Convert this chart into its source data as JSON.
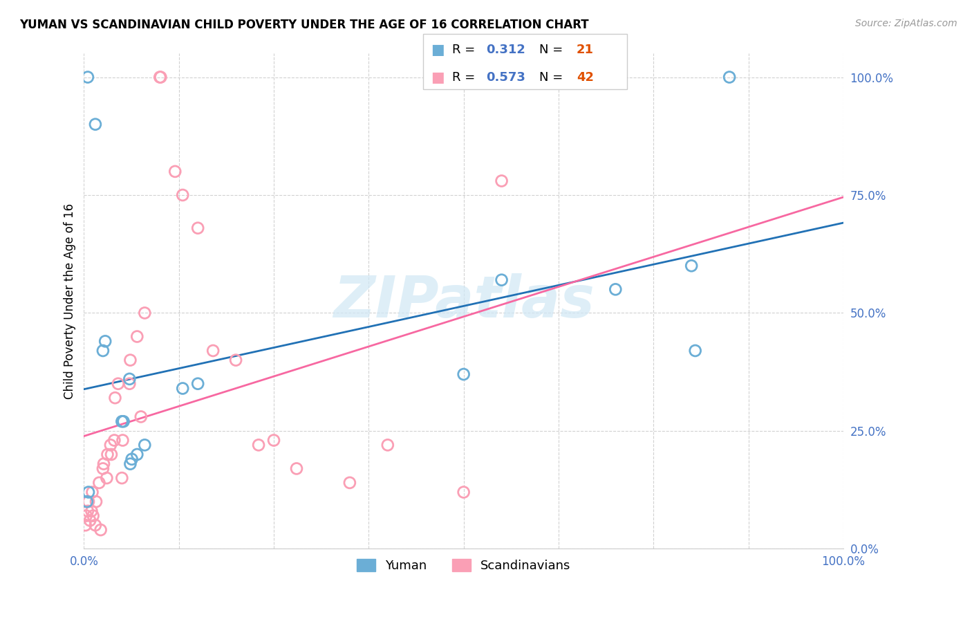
{
  "title": "YUMAN VS SCANDINAVIAN CHILD POVERTY UNDER THE AGE OF 16 CORRELATION CHART",
  "source": "Source: ZipAtlas.com",
  "ylabel": "Child Poverty Under the Age of 16",
  "yticks": [
    "0.0%",
    "25.0%",
    "50.0%",
    "75.0%",
    "100.0%"
  ],
  "ytick_vals": [
    0,
    25,
    50,
    75,
    100
  ],
  "watermark": "ZIPatlas",
  "yuman_R": "0.312",
  "yuman_N": "21",
  "scand_R": "0.573",
  "scand_N": "42",
  "yuman_face_color": "none",
  "yuman_edge_color": "#6baed6",
  "scand_face_color": "none",
  "scand_edge_color": "#fa9fb5",
  "yuman_line_color": "#2171b5",
  "scand_line_color": "#f768a1",
  "tick_color": "#4472C4",
  "grid_color": "#cccccc",
  "watermark_color": "#d0e8f5",
  "yuman_x": [
    0.5,
    1.5,
    2.5,
    2.8,
    5.0,
    5.2,
    6.0,
    6.1,
    6.3,
    7.0,
    8.0,
    13.0,
    15.0,
    50.0,
    55.0,
    70.0,
    80.0,
    80.5,
    85.0,
    0.4,
    0.6
  ],
  "yuman_y": [
    100,
    90,
    42,
    44,
    27,
    27,
    36,
    18,
    19,
    20,
    22,
    34,
    35,
    37,
    57,
    55,
    60,
    42,
    100,
    10,
    12
  ],
  "scand_x": [
    0.2,
    0.3,
    0.5,
    0.6,
    0.8,
    1.0,
    1.1,
    1.5,
    1.6,
    2.0,
    2.5,
    2.6,
    3.0,
    3.1,
    3.5,
    3.6,
    4.0,
    4.1,
    4.5,
    5.0,
    5.1,
    6.0,
    6.1,
    7.0,
    7.5,
    8.0,
    10.0,
    10.1,
    12.0,
    13.0,
    15.0,
    17.0,
    20.0,
    23.0,
    25.0,
    28.0,
    35.0,
    40.0,
    50.0,
    55.0,
    1.2,
    2.2
  ],
  "scand_y": [
    5,
    7,
    8,
    10,
    6,
    8,
    12,
    5,
    10,
    14,
    17,
    18,
    15,
    20,
    22,
    20,
    23,
    32,
    35,
    15,
    23,
    35,
    40,
    45,
    28,
    50,
    100,
    100,
    80,
    75,
    68,
    42,
    40,
    22,
    23,
    17,
    14,
    22,
    12,
    78,
    7,
    4
  ]
}
